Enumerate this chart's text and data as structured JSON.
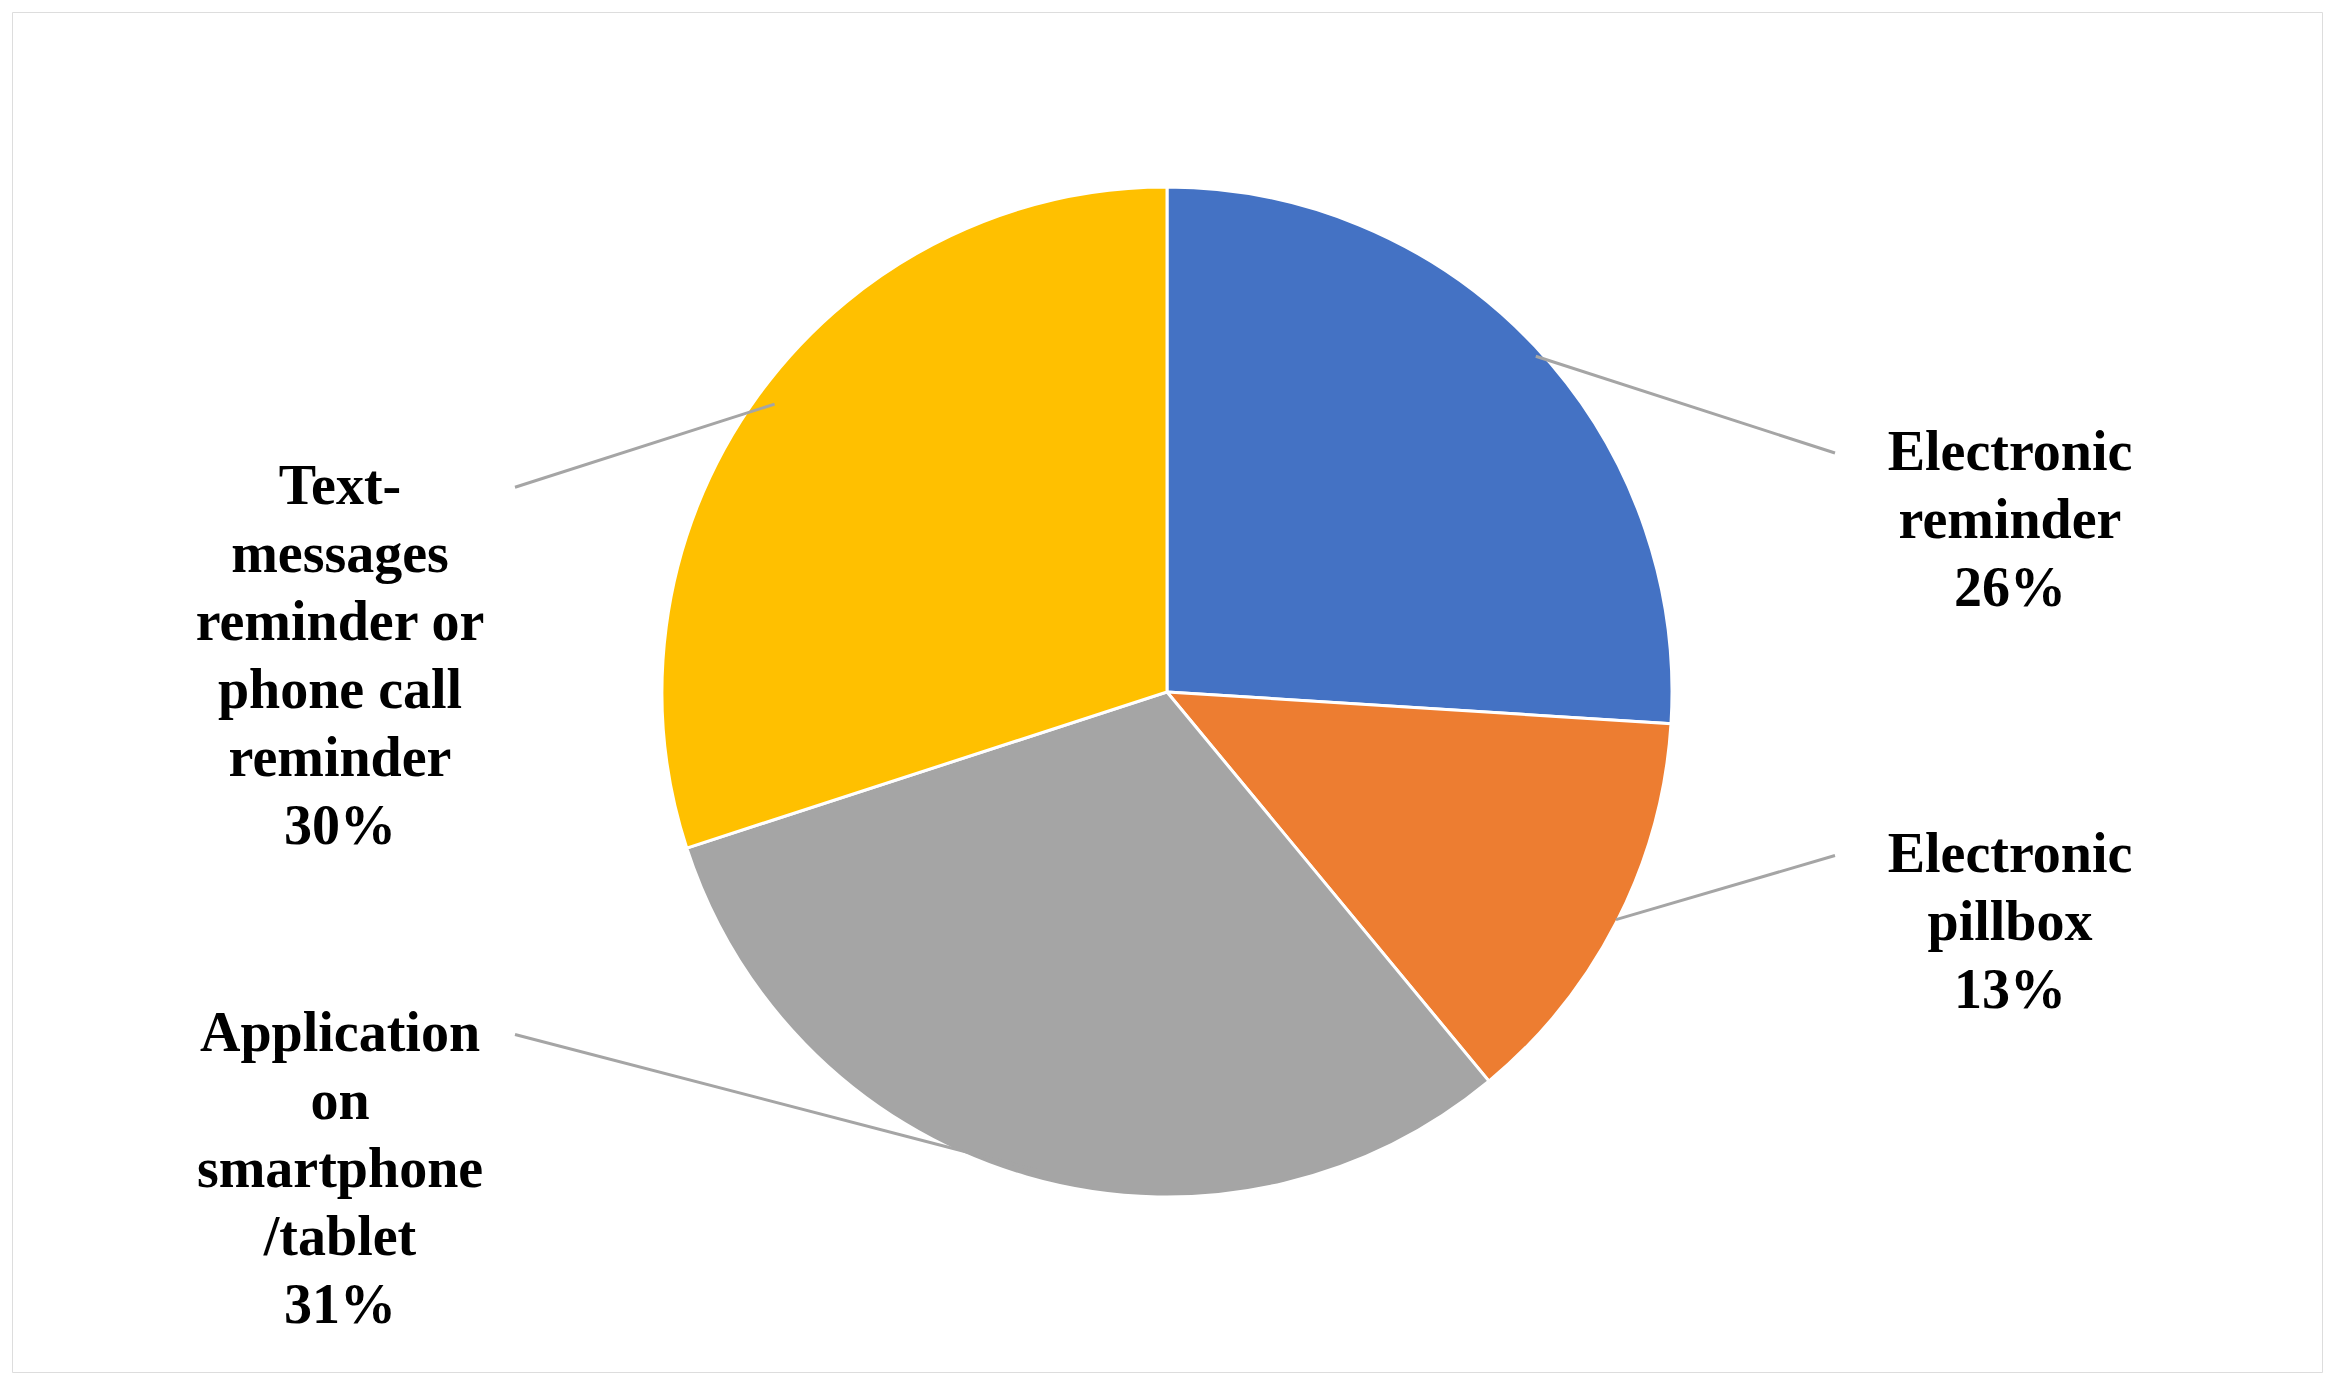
{
  "chart_data": {
    "type": "pie",
    "categories": [
      "Electronic reminder",
      "Electronic pillbox",
      "Application on smartphone /tablet",
      "Text-messages reminder or phone call reminder"
    ],
    "values": [
      26,
      13,
      31,
      30
    ],
    "value_labels": [
      "26%",
      "13%",
      "31%",
      "30%"
    ],
    "colors": [
      "#4472c4",
      "#ed7d31",
      "#a5a5a5",
      "#ffc000"
    ]
  }
}
